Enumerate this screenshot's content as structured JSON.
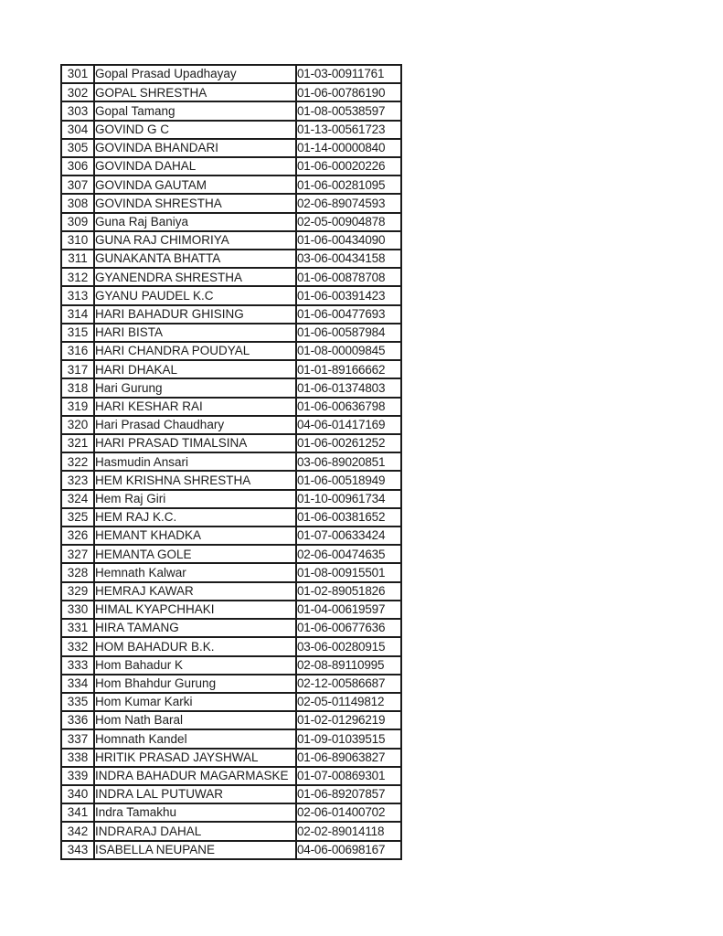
{
  "page": {
    "background": "#ffffff",
    "text_color": "#1d1d1d",
    "border_color": "#1b1b1b"
  },
  "table": {
    "columns": [
      "serial_number",
      "name",
      "registration_number"
    ],
    "rows": [
      {
        "no": "301",
        "name": "Gopal Prasad Upadhayay",
        "id": "01-03-00911761"
      },
      {
        "no": "302",
        "name": "GOPAL SHRESTHA",
        "id": "01-06-00786190"
      },
      {
        "no": "303",
        "name": "Gopal Tamang",
        "id": "01-08-00538597"
      },
      {
        "no": "304",
        "name": "GOVIND G C",
        "id": "01-13-00561723"
      },
      {
        "no": "305",
        "name": "GOVINDA BHANDARI",
        "id": "01-14-00000840"
      },
      {
        "no": "306",
        "name": "GOVINDA DAHAL",
        "id": "01-06-00020226"
      },
      {
        "no": "307",
        "name": "GOVINDA GAUTAM",
        "id": "01-06-00281095"
      },
      {
        "no": "308",
        "name": "GOVINDA SHRESTHA",
        "id": "02-06-89074593"
      },
      {
        "no": "309",
        "name": "Guna Raj Baniya",
        "id": "02-05-00904878"
      },
      {
        "no": "310",
        "name": "GUNA RAJ CHIMORIYA",
        "id": "01-06-00434090"
      },
      {
        "no": "311",
        "name": "GUNAKANTA BHATTA",
        "id": "03-06-00434158"
      },
      {
        "no": "312",
        "name": "GYANENDRA SHRESTHA",
        "id": "01-06-00878708"
      },
      {
        "no": "313",
        "name": "GYANU PAUDEL K.C",
        "id": "01-06-00391423"
      },
      {
        "no": "314",
        "name": "HARI BAHADUR GHISING",
        "id": "01-06-00477693"
      },
      {
        "no": "315",
        "name": "HARI BISTA",
        "id": "01-06-00587984"
      },
      {
        "no": "316",
        "name": "HARI CHANDRA POUDYAL",
        "id": "01-08-00009845"
      },
      {
        "no": "317",
        "name": "HARI DHAKAL",
        "id": "01-01-89166662"
      },
      {
        "no": "318",
        "name": "Hari Gurung",
        "id": "01-06-01374803"
      },
      {
        "no": "319",
        "name": "HARI KESHAR RAI",
        "id": "01-06-00636798"
      },
      {
        "no": "320",
        "name": "Hari Prasad Chaudhary",
        "id": "04-06-01417169"
      },
      {
        "no": "321",
        "name": "HARI PRASAD TIMALSINA",
        "id": "01-06-00261252"
      },
      {
        "no": "322",
        "name": "Hasmudin Ansari",
        "id": "03-06-89020851"
      },
      {
        "no": "323",
        "name": "HEM KRISHNA SHRESTHA",
        "id": "01-06-00518949"
      },
      {
        "no": "324",
        "name": "Hem Raj Giri",
        "id": "01-10-00961734"
      },
      {
        "no": "325",
        "name": "HEM RAJ K.C.",
        "id": "01-06-00381652"
      },
      {
        "no": "326",
        "name": "HEMANT KHADKA",
        "id": "01-07-00633424"
      },
      {
        "no": "327",
        "name": "HEMANTA GOLE",
        "id": "02-06-00474635"
      },
      {
        "no": "328",
        "name": "Hemnath Kalwar",
        "id": "01-08-00915501"
      },
      {
        "no": "329",
        "name": "HEMRAJ KAWAR",
        "id": "01-02-89051826"
      },
      {
        "no": "330",
        "name": "HIMAL KYAPCHHAKI",
        "id": "01-04-00619597"
      },
      {
        "no": "331",
        "name": "HIRA TAMANG",
        "id": "01-06-00677636"
      },
      {
        "no": "332",
        "name": "HOM BAHADUR B.K.",
        "id": "03-06-00280915"
      },
      {
        "no": "333",
        "name": "Hom Bahadur K",
        "id": "02-08-89110995"
      },
      {
        "no": "334",
        "name": "Hom Bhahdur Gurung",
        "id": "02-12-00586687"
      },
      {
        "no": "335",
        "name": "Hom Kumar Karki",
        "id": "02-05-01149812"
      },
      {
        "no": "336",
        "name": "Hom Nath Baral",
        "id": "01-02-01296219"
      },
      {
        "no": "337",
        "name": "Homnath Kandel",
        "id": "01-09-01039515"
      },
      {
        "no": "338",
        "name": "HRITIK PRASAD JAYSHWAL",
        "id": "01-06-89063827"
      },
      {
        "no": "339",
        "name": "INDRA BAHADUR MAGARMASKE",
        "id": "01-07-00869301"
      },
      {
        "no": "340",
        "name": "INDRA LAL PUTUWAR",
        "id": "01-06-89207857"
      },
      {
        "no": "341",
        "name": "Indra Tamakhu",
        "id": "02-06-01400702"
      },
      {
        "no": "342",
        "name": "INDRARAJ DAHAL",
        "id": "02-02-89014118"
      },
      {
        "no": "343",
        "name": "ISABELLA NEUPANE",
        "id": "04-06-00698167"
      }
    ]
  }
}
